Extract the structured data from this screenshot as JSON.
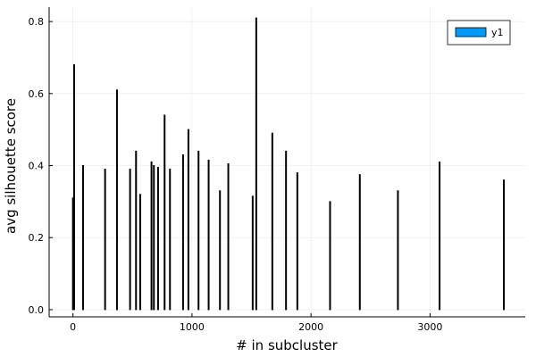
{
  "chart_data": {
    "type": "bar",
    "xlabel": "# in subcluster",
    "ylabel": "avg silhouette score",
    "xlim": [
      -200,
      3800
    ],
    "ylim": [
      -0.02,
      0.84
    ],
    "x_ticks": [
      0,
      1000,
      2000,
      3000
    ],
    "x_tick_labels": [
      "0",
      "1000",
      "2000",
      "3000"
    ],
    "y_ticks": [
      0.0,
      0.2,
      0.4,
      0.6,
      0.8
    ],
    "y_tick_labels": [
      "0.0",
      "0.2",
      "0.4",
      "0.6",
      "0.8"
    ],
    "grid": true,
    "legend_position": "top-right",
    "series": [
      {
        "name": "y1",
        "color": "#009af9",
        "points": [
          {
            "x": 0,
            "y": 0.31
          },
          {
            "x": 10,
            "y": 0.68
          },
          {
            "x": 85,
            "y": 0.4
          },
          {
            "x": 270,
            "y": 0.39
          },
          {
            "x": 370,
            "y": 0.61
          },
          {
            "x": 480,
            "y": 0.39
          },
          {
            "x": 530,
            "y": 0.44
          },
          {
            "x": 565,
            "y": 0.32
          },
          {
            "x": 660,
            "y": 0.41
          },
          {
            "x": 680,
            "y": 0.4
          },
          {
            "x": 715,
            "y": 0.395
          },
          {
            "x": 770,
            "y": 0.54
          },
          {
            "x": 815,
            "y": 0.39
          },
          {
            "x": 925,
            "y": 0.43
          },
          {
            "x": 970,
            "y": 0.5
          },
          {
            "x": 1055,
            "y": 0.44
          },
          {
            "x": 1140,
            "y": 0.415
          },
          {
            "x": 1235,
            "y": 0.33
          },
          {
            "x": 1305,
            "y": 0.405
          },
          {
            "x": 1510,
            "y": 0.315
          },
          {
            "x": 1540,
            "y": 0.81
          },
          {
            "x": 1675,
            "y": 0.49
          },
          {
            "x": 1790,
            "y": 0.44
          },
          {
            "x": 1885,
            "y": 0.38
          },
          {
            "x": 2160,
            "y": 0.3
          },
          {
            "x": 2410,
            "y": 0.375
          },
          {
            "x": 2730,
            "y": 0.33
          },
          {
            "x": 3080,
            "y": 0.41
          },
          {
            "x": 3620,
            "y": 0.36
          }
        ]
      }
    ]
  }
}
